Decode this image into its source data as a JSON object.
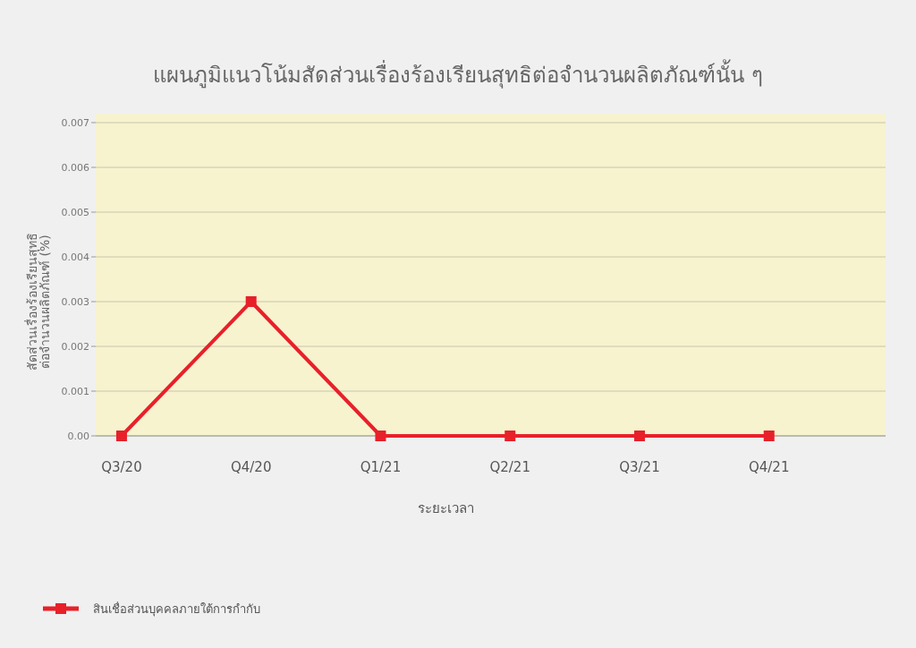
{
  "chart_data": {
    "type": "line",
    "title": "แผนภูมิแนวโน้มสัดส่วนเรื่องร้องเรียนสุทธิต่อจำนวนผลิตภัณฑ์นั้น ๆ",
    "xlabel": "ระยะเวลา",
    "ylabel": "สัดส่วนเรื่องร้องเรียนสุทธิ\nต่อจำนวนผลิตภัณฑ์ (%)",
    "categories": [
      "Q3/20",
      "Q4/20",
      "Q1/21",
      "Q2/21",
      "Q3/21",
      "Q4/21"
    ],
    "series": [
      {
        "name": "สินเชื่อส่วนบุคคลภายใต้การกำกับ",
        "color": "#e8202a",
        "values": [
          0,
          0.003,
          0,
          0,
          0,
          0
        ]
      }
    ],
    "ylim": [
      0,
      0.0072
    ],
    "yticks": [
      {
        "value": 0,
        "label": "0.00"
      },
      0.001,
      0.002,
      0.003,
      0.004,
      0.005,
      0.006,
      0.007
    ],
    "grid": "y",
    "legend": "bottom left",
    "marker": "square",
    "line_style": "solid"
  }
}
